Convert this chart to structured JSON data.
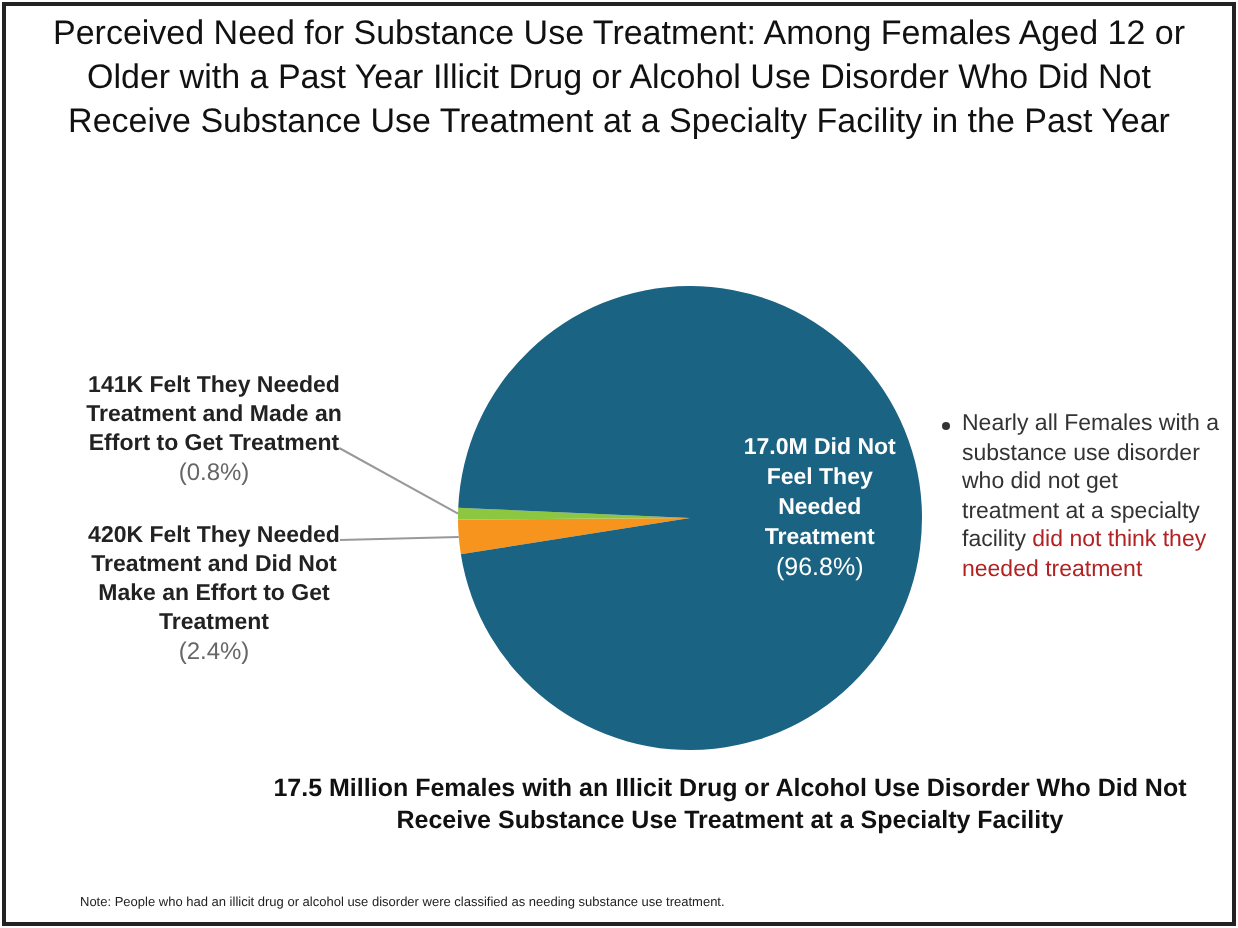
{
  "chart_data": {
    "type": "pie",
    "title": "Perceived Need for Substance Use Treatment: Among Females Aged 12 or Older with a Past Year Illicit Drug or Alcohol Use Disorder Who Did Not Receive Substance Use Treatment at a Specialty Facility in the Past Year",
    "subtitle": "17.5 Million Females with an Illicit Drug or Alcohol Use Disorder Who Did Not Receive Substance Use Treatment at a Specialty Facility",
    "categories": [
      "420K Felt They Needed Treatment and Did Not Make an Effort to Get Treatment",
      "141K Felt They Needed Treatment and Made an Effort to Get Treatment",
      "17.0M Did Not Feel They Needed Treatment"
    ],
    "values": [
      2.4,
      0.8,
      96.8
    ],
    "colors": [
      "#f7941d",
      "#8dc63f",
      "#1b6383"
    ],
    "value_labels": [
      "(2.4%)",
      "(0.8%)",
      "(96.8%)"
    ],
    "annotations": [
      "Nearly all Females with a substance use disorder who did not get treatment at a specialty facility",
      "did not think they needed treatment",
      "Note: People who had an illicit drug or alcohol use disorder were classified as needing substance use treatment."
    ],
    "legend": false
  }
}
